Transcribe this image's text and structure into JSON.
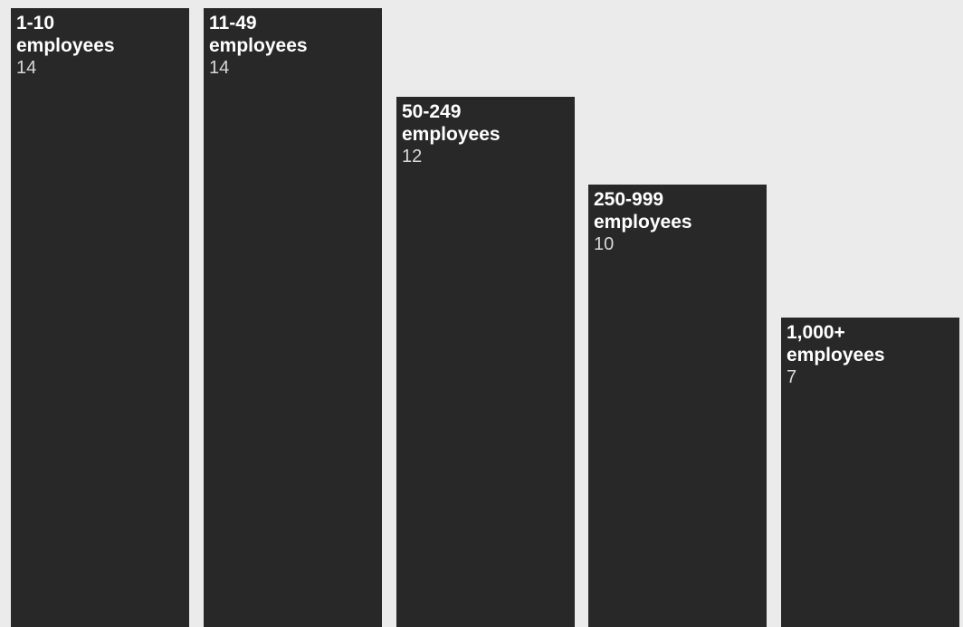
{
  "chart_data": {
    "type": "bar",
    "categories": [
      "1-10\nemployees",
      "11-49\nemployees",
      "50-249\nemployees",
      "250-999\nemployees",
      "1,000+\nemployees"
    ],
    "values": [
      14,
      14,
      12,
      10,
      7
    ],
    "ylim": [
      0,
      14
    ],
    "grid": false,
    "legend": "none"
  },
  "colors": {
    "background": "#ebebeb",
    "bar": "#282828",
    "label": "#ffffff",
    "value": "#d8d8d8"
  }
}
